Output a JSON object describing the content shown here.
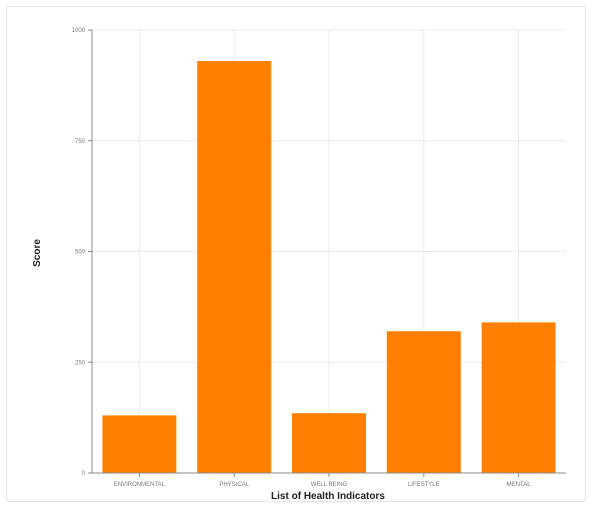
{
  "chart_data": {
    "type": "bar",
    "categories": [
      "ENVIRONMENTAL",
      "PHYSICAL",
      "WELL BEING",
      "LIFESTYLE",
      "MENTAL"
    ],
    "values": [
      130,
      930,
      135,
      320,
      340
    ],
    "xlabel": "List of Health Indicators",
    "ylabel": "Score",
    "ylim": [
      0,
      1000
    ],
    "yticks": [
      0,
      250,
      500,
      750,
      1000
    ],
    "ytick_labels": [
      "0",
      "250",
      "500",
      "750",
      "1000"
    ],
    "grid": true,
    "legend": "none",
    "bar_color": "#ff8000"
  }
}
